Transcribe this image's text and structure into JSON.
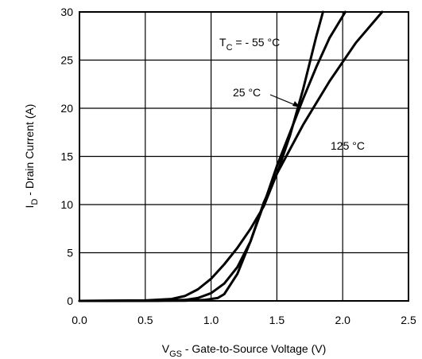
{
  "chart_data": {
    "type": "line",
    "xlabel": {
      "main": "V",
      "sub": "GS",
      "rest": " - Gate-to-Source Voltage (V)"
    },
    "ylabel": {
      "main": "I",
      "sub": "D",
      "rest": " - Drain Current (A)"
    },
    "xlim": [
      0,
      2.5
    ],
    "ylim": [
      0,
      30
    ],
    "x_ticks": [
      "0.0",
      "0.5",
      "1.0",
      "1.5",
      "2.0",
      "2.5"
    ],
    "y_ticks": [
      "0",
      "5",
      "10",
      "15",
      "20",
      "25",
      "30"
    ],
    "grid": true,
    "series": [
      {
        "name": "T_C = - 55 °C",
        "points": [
          [
            0,
            0
          ],
          [
            0.5,
            0.05
          ],
          [
            0.7,
            0.2
          ],
          [
            0.8,
            0.5
          ],
          [
            0.9,
            1.2
          ],
          [
            1.0,
            2.3
          ],
          [
            1.1,
            3.8
          ],
          [
            1.2,
            5.5
          ],
          [
            1.3,
            7.5
          ],
          [
            1.4,
            9.8
          ],
          [
            1.5,
            13.2
          ],
          [
            1.6,
            17.2
          ],
          [
            1.7,
            22.0
          ],
          [
            1.8,
            27.5
          ],
          [
            1.85,
            30
          ]
        ]
      },
      {
        "name": "25 °C",
        "points": [
          [
            0,
            0
          ],
          [
            0.6,
            0.02
          ],
          [
            0.8,
            0.1
          ],
          [
            0.9,
            0.3
          ],
          [
            1.0,
            0.8
          ],
          [
            1.1,
            1.8
          ],
          [
            1.2,
            3.5
          ],
          [
            1.3,
            6.2
          ],
          [
            1.4,
            10.0
          ],
          [
            1.5,
            14.0
          ],
          [
            1.6,
            17.5
          ],
          [
            1.7,
            21.0
          ],
          [
            1.8,
            24.3
          ],
          [
            1.9,
            27.3
          ],
          [
            2.02,
            30
          ]
        ]
      },
      {
        "name": "125 °C",
        "points": [
          [
            0,
            0
          ],
          [
            0.8,
            0.02
          ],
          [
            0.95,
            0.1
          ],
          [
            1.05,
            0.3
          ],
          [
            1.1,
            0.7
          ],
          [
            1.2,
            2.8
          ],
          [
            1.3,
            6.2
          ],
          [
            1.4,
            10.2
          ],
          [
            1.5,
            13.2
          ],
          [
            1.7,
            18.3
          ],
          [
            1.9,
            22.8
          ],
          [
            2.1,
            26.8
          ],
          [
            2.3,
            30
          ]
        ]
      }
    ],
    "annotations": [
      {
        "main": "T",
        "sub": "C",
        "rest": " = - 55 °C"
      },
      {
        "text": "25 °C"
      },
      {
        "text": "125 °C"
      }
    ]
  }
}
